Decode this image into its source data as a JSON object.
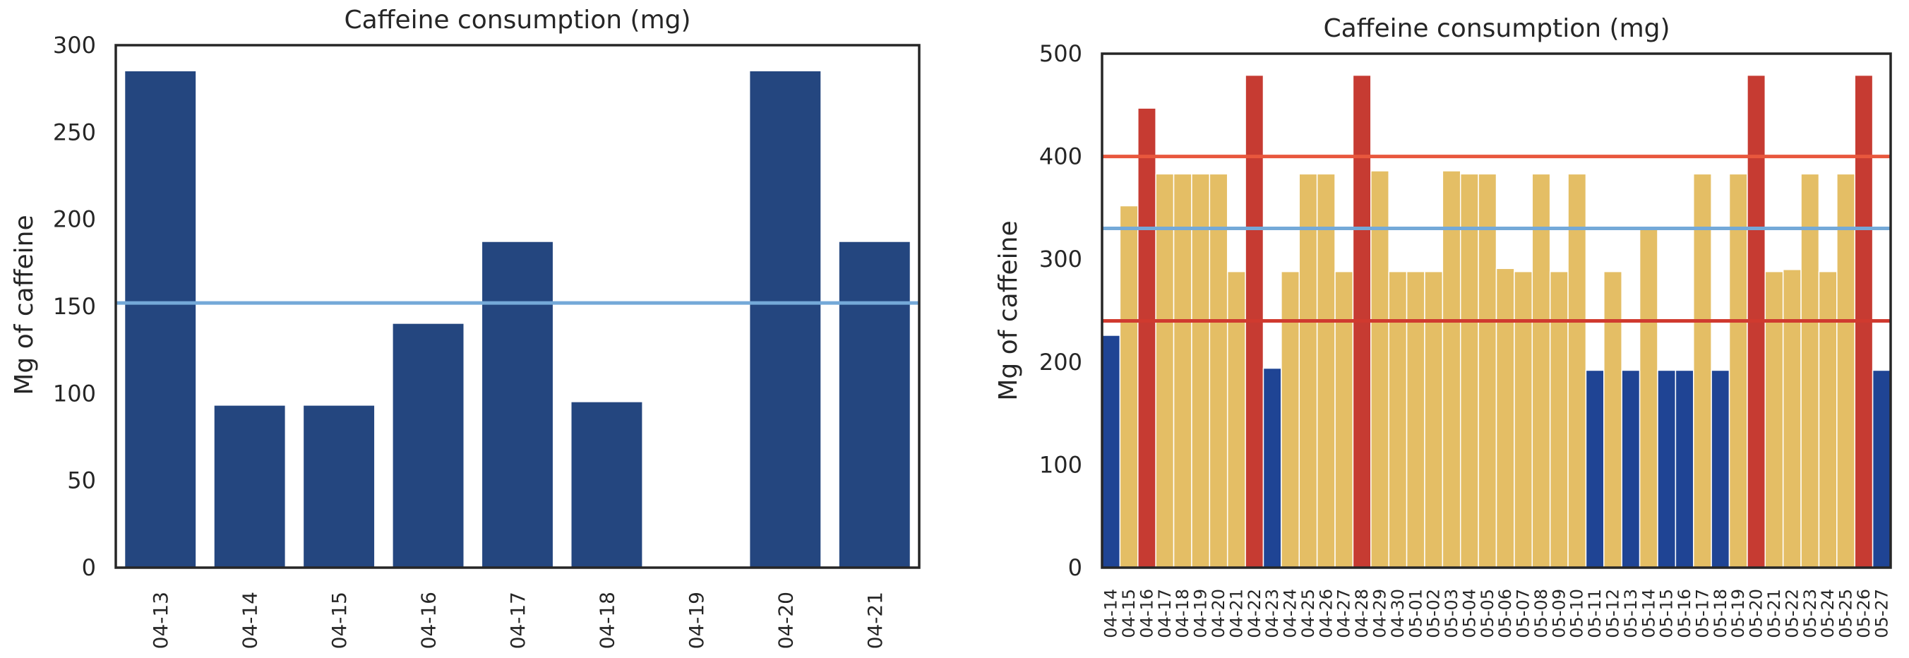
{
  "chart_data": [
    {
      "type": "bar",
      "title": "Caffeine consumption (mg)",
      "xlabel": "",
      "ylabel": "Mg of caffeine",
      "ylim": [
        0,
        300
      ],
      "yticks": [
        0,
        50,
        100,
        150,
        200,
        250,
        300
      ],
      "categories": [
        "04-13",
        "04-14",
        "04-15",
        "04-16",
        "04-17",
        "04-18",
        "04-19",
        "04-20",
        "04-21"
      ],
      "values": [
        285,
        93,
        93,
        140,
        187,
        95,
        0,
        285,
        187
      ],
      "bar_color": "#24467f",
      "reference_lines": [
        {
          "value": 152,
          "color": "#74a9d8"
        }
      ]
    },
    {
      "type": "bar",
      "title": "Caffeine consumption (mg)",
      "xlabel": "",
      "ylabel": "Mg of caffeine",
      "ylim": [
        0,
        500
      ],
      "yticks": [
        0,
        100,
        200,
        300,
        400,
        500
      ],
      "categories": [
        "04-14",
        "04-15",
        "04-16",
        "04-17",
        "04-18",
        "04-19",
        "04-20",
        "04-21",
        "04-22",
        "04-23",
        "04-24",
        "04-25",
        "04-26",
        "04-27",
        "04-28",
        "04-29",
        "04-30",
        "05-01",
        "05-02",
        "05-03",
        "05-04",
        "05-05",
        "05-06",
        "05-07",
        "05-08",
        "05-09",
        "05-10",
        "05-11",
        "05-12",
        "05-13",
        "05-14",
        "05-15",
        "05-16",
        "05-17",
        "05-18",
        "05-19",
        "05-20",
        "05-21",
        "05-22",
        "05-23",
        "05-24",
        "05-25",
        "05-26",
        "05-27"
      ],
      "values": [
        226,
        352,
        447,
        383,
        383,
        383,
        383,
        288,
        479,
        194,
        288,
        383,
        383,
        288,
        479,
        386,
        288,
        288,
        288,
        386,
        383,
        383,
        291,
        288,
        383,
        288,
        383,
        192,
        288,
        192,
        332,
        192,
        192,
        383,
        192,
        383,
        479,
        288,
        290,
        383,
        288,
        383,
        479,
        192
      ],
      "colors": {
        "low": "#1f4494",
        "mid": "#e4be65",
        "high": "#c63b32"
      },
      "bar_levels": [
        "low",
        "mid",
        "high",
        "mid",
        "mid",
        "mid",
        "mid",
        "mid",
        "high",
        "low",
        "mid",
        "mid",
        "mid",
        "mid",
        "high",
        "mid",
        "mid",
        "mid",
        "mid",
        "mid",
        "mid",
        "mid",
        "mid",
        "mid",
        "mid",
        "mid",
        "mid",
        "low",
        "mid",
        "low",
        "mid",
        "low",
        "low",
        "mid",
        "low",
        "mid",
        "high",
        "mid",
        "mid",
        "mid",
        "mid",
        "mid",
        "high",
        "low"
      ],
      "reference_lines": [
        {
          "value": 400,
          "color": "#e8573d"
        },
        {
          "value": 330,
          "color": "#74a9d8"
        },
        {
          "value": 240,
          "color": "#d03a2f"
        }
      ]
    }
  ]
}
